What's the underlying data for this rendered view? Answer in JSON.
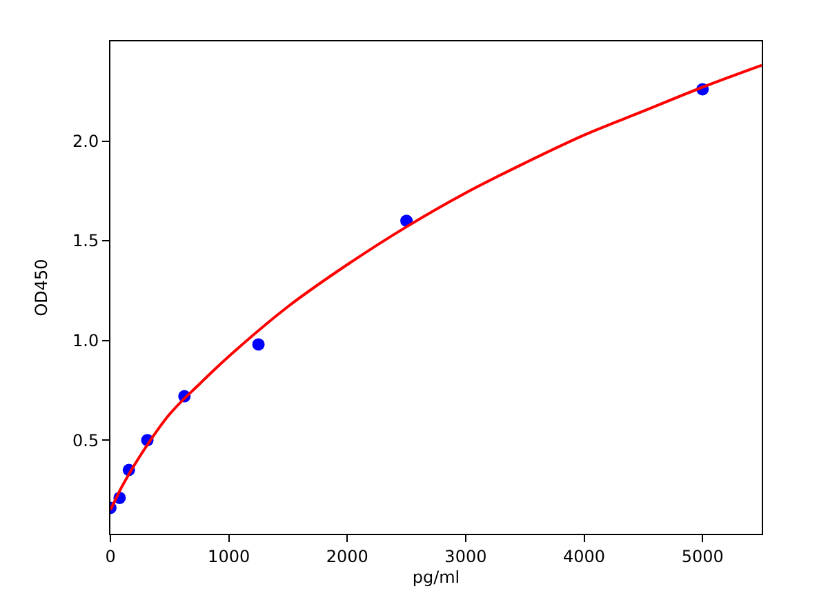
{
  "chart_data": {
    "type": "scatter",
    "xlabel": "pg/ml",
    "ylabel": "OD450",
    "xlim": [
      0,
      5500
    ],
    "xticks": [
      0,
      1000,
      2000,
      3000,
      4000,
      5000
    ],
    "ylim": [
      0.03,
      2.5
    ],
    "yticks": [
      0.5,
      {
        "value": 1,
        "label": "1.0"
      },
      1.5,
      {
        "value": 2,
        "label": "2.0"
      }
    ],
    "series": [
      {
        "type": "line",
        "color": "#ff0000",
        "marker": "none",
        "line_style": "solid",
        "x": [
          0,
          50,
          100,
          250,
          500,
          750,
          1000,
          1500,
          2000,
          2500,
          3000,
          3500,
          4000,
          4500,
          5000,
          5500
        ],
        "values": [
          0.15,
          0.21,
          0.27,
          0.42,
          0.63,
          0.78,
          0.92,
          1.17,
          1.38,
          1.57,
          1.74,
          1.89,
          2.03,
          2.15,
          2.27,
          2.38
        ]
      },
      {
        "color": "#0000ff",
        "marker": "circle",
        "x": [
          0,
          78,
          156,
          312,
          625,
          1250,
          2500,
          5000
        ],
        "values": [
          0.16,
          0.21,
          0.35,
          0.5,
          0.72,
          0.98,
          1.6,
          2.26
        ]
      }
    ]
  }
}
